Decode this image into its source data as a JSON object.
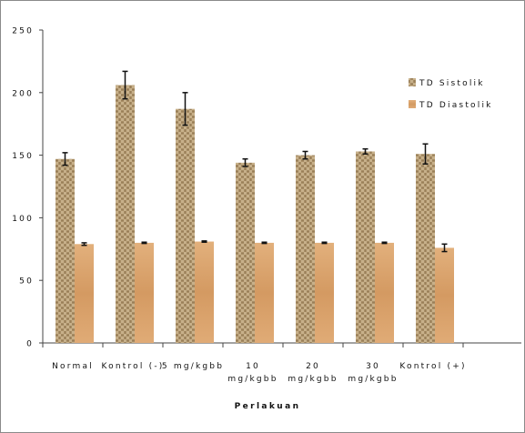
{
  "chart_data": {
    "type": "bar",
    "title": "",
    "xlabel": "Perlakuan",
    "ylabel": "",
    "ylim": [
      0,
      250
    ],
    "yticks": [
      0,
      50,
      100,
      150,
      200,
      250
    ],
    "grid": false,
    "legend_position": "right",
    "categories": [
      [
        "Normal"
      ],
      [
        "Kontrol (-)"
      ],
      [
        "5 mg/kgbb"
      ],
      [
        "10",
        "mg/kgbb"
      ],
      [
        "20",
        "mg/kgbb"
      ],
      [
        "30",
        "mg/kgbb"
      ],
      [
        "Kontrol (+)"
      ]
    ],
    "series": [
      {
        "name": "TD Sistolik",
        "color": "#b9a07a",
        "values": [
          147,
          206,
          187,
          144,
          150,
          153,
          151
        ],
        "errors": [
          5,
          11,
          13,
          3,
          3,
          2,
          8
        ]
      },
      {
        "name": "TD Diastolik",
        "color": "#d9a36e",
        "values": [
          79,
          80,
          81,
          80,
          80,
          80,
          76
        ],
        "errors": [
          1,
          0.5,
          0.5,
          0.5,
          0.5,
          0.5,
          3
        ]
      }
    ]
  }
}
